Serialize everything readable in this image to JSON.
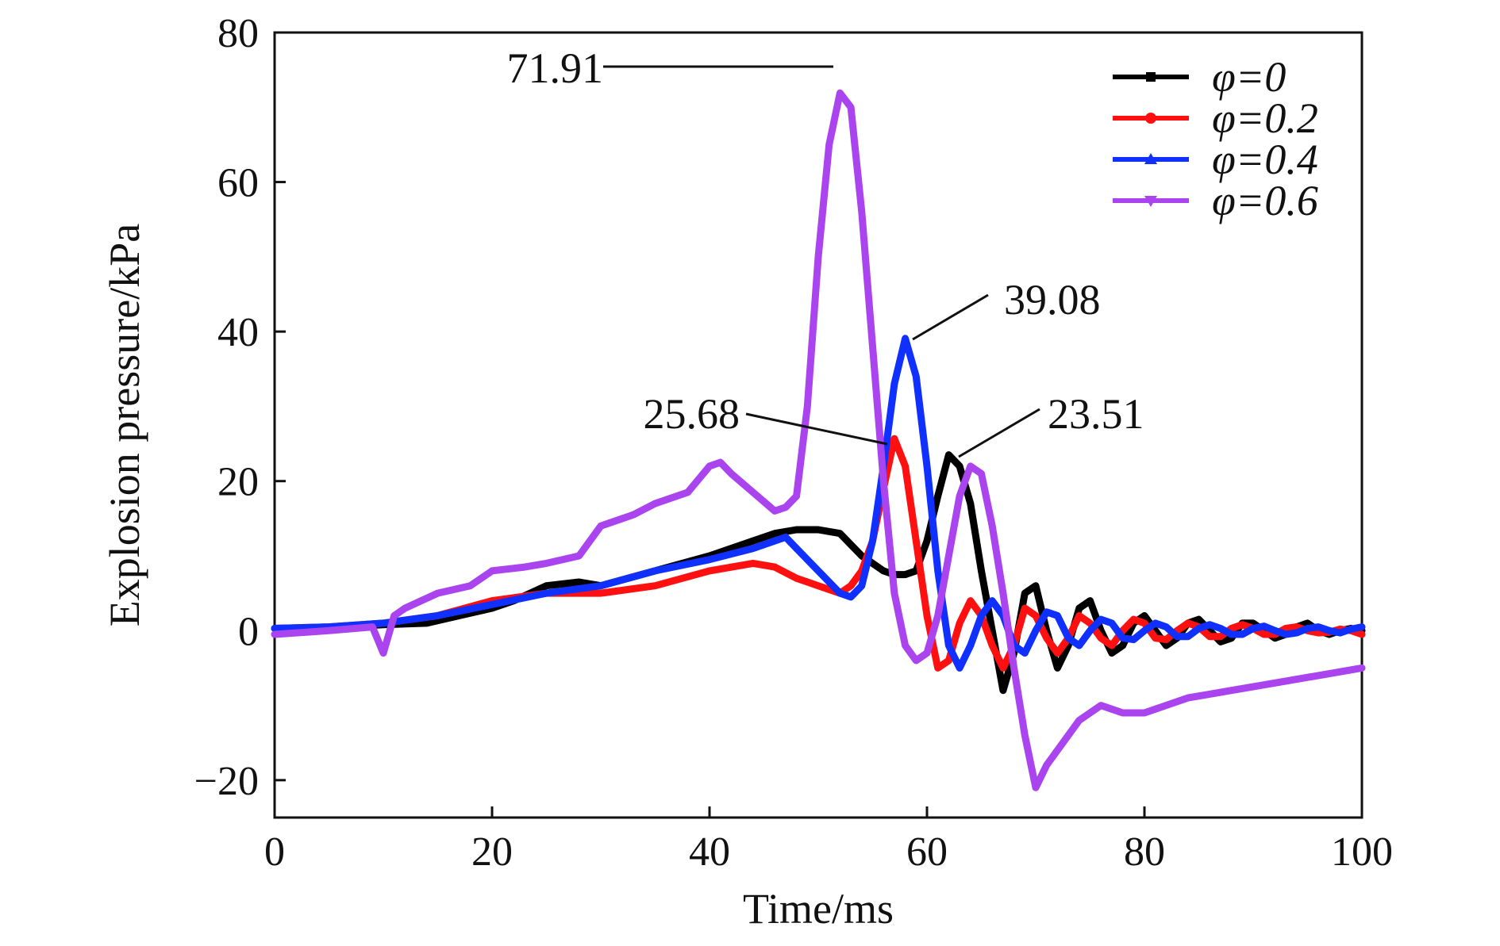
{
  "chart_data": {
    "type": "line",
    "title": "",
    "xlabel": "Time/ms",
    "ylabel": "Explosion pressure/kPa",
    "xlim": [
      0,
      100
    ],
    "ylim": [
      -25,
      80
    ],
    "xticks": [
      0,
      20,
      40,
      60,
      80,
      100
    ],
    "yticks": [
      -20,
      0,
      20,
      40,
      60,
      80
    ],
    "ytick_labels": [
      "−20",
      "0",
      "20",
      "40",
      "60",
      "80"
    ],
    "grid": false,
    "legend_position": "top-right",
    "series": [
      {
        "name": "φ=0",
        "color": "#000000",
        "marker": "square",
        "x": [
          0,
          5,
          10,
          14,
          17,
          20,
          22,
          25,
          28,
          30,
          35,
          40,
          44,
          46,
          48,
          50,
          52,
          54,
          56,
          57,
          58,
          59,
          60,
          61,
          62,
          63,
          64,
          65,
          66,
          67,
          68,
          69,
          70,
          71,
          72,
          73,
          74,
          75,
          76,
          77,
          78,
          79,
          80,
          81,
          82,
          83,
          84,
          85,
          86,
          87,
          88,
          89,
          90,
          91,
          92,
          93,
          94,
          95,
          96,
          97,
          98,
          99,
          100
        ],
        "y": [
          0.3,
          0.4,
          0.8,
          1,
          2,
          3,
          4,
          6,
          6.5,
          6,
          8,
          10,
          12,
          13,
          13.5,
          13.5,
          13,
          10,
          8,
          7.5,
          7.5,
          8,
          12,
          18,
          23.51,
          22,
          17,
          8,
          0,
          -8,
          -3,
          5,
          6,
          0,
          -5,
          -2,
          3,
          4,
          0,
          -3,
          -2,
          1,
          2,
          0,
          -2,
          -1,
          1,
          1.5,
          0,
          -1.5,
          -1,
          1,
          1,
          0,
          -1,
          -0.5,
          0.5,
          1,
          0,
          -0.5,
          0,
          0.3,
          0
        ]
      },
      {
        "name": "φ=0.2",
        "color": "#ff1010",
        "marker": "circle",
        "x": [
          0,
          5,
          10,
          15,
          20,
          25,
          30,
          35,
          40,
          44,
          46,
          48,
          50,
          52,
          53,
          54,
          55,
          56,
          57,
          58,
          59,
          60,
          61,
          62,
          63,
          64,
          65,
          66,
          67,
          68,
          69,
          70,
          71,
          72,
          73,
          74,
          75,
          76,
          77,
          78,
          79,
          80,
          81,
          82,
          83,
          84,
          85,
          86,
          87,
          88,
          89,
          90,
          91,
          92,
          93,
          94,
          95,
          96,
          97,
          98,
          99,
          100
        ],
        "y": [
          0.3,
          0.5,
          1,
          2,
          4,
          5,
          5,
          6,
          8,
          9,
          8.5,
          7,
          6,
          5,
          6,
          8,
          12,
          19,
          25.68,
          22,
          12,
          2,
          -5,
          -4,
          1,
          4,
          2,
          -2,
          -5,
          -2,
          3,
          2,
          -1,
          -3,
          -1,
          2,
          1,
          -1,
          -2,
          0,
          1.5,
          1,
          -1,
          -1.2,
          0,
          1,
          0.5,
          -0.8,
          -0.8,
          0.3,
          0.8,
          0.3,
          -0.5,
          -0.5,
          0.3,
          0.5,
          0,
          -0.3,
          -0.2,
          0.2,
          0,
          -0.5
        ]
      },
      {
        "name": "φ=0.4",
        "color": "#1030ff",
        "marker": "triangle",
        "x": [
          0,
          5,
          10,
          15,
          20,
          25,
          30,
          35,
          40,
          44,
          46,
          47,
          48,
          50,
          52,
          53,
          54,
          55,
          56,
          57,
          58,
          59,
          60,
          61,
          62,
          63,
          64,
          65,
          66,
          67,
          68,
          69,
          70,
          71,
          72,
          73,
          74,
          75,
          76,
          77,
          78,
          79,
          80,
          81,
          82,
          83,
          84,
          85,
          86,
          87,
          88,
          89,
          90,
          91,
          92,
          93,
          94,
          95,
          96,
          97,
          98,
          99,
          100
        ],
        "y": [
          0.3,
          0.5,
          1,
          2,
          3.5,
          5,
          6,
          8,
          9.5,
          11,
          12,
          12.5,
          11,
          8,
          5,
          4.5,
          6,
          12,
          22,
          33,
          39.08,
          34,
          22,
          8,
          -2,
          -5,
          -2,
          2,
          4,
          2,
          -2,
          -3,
          0,
          2.5,
          2,
          -1,
          -2,
          0,
          1.5,
          1,
          -1,
          -1.2,
          0,
          1,
          0.5,
          -0.8,
          -0.8,
          0.3,
          0.8,
          0.3,
          -0.5,
          -0.5,
          0.3,
          0.6,
          0,
          -0.5,
          -0.3,
          0.3,
          0.5,
          0,
          -0.3,
          0.2,
          0.5
        ]
      },
      {
        "name": "φ=0.6",
        "color": "#aa44ee",
        "marker": "inverted-triangle",
        "x": [
          0,
          5,
          9,
          10,
          11,
          12,
          15,
          18,
          20,
          23,
          25,
          28,
          30,
          33,
          35,
          38,
          40,
          41,
          42,
          44,
          46,
          47,
          48,
          49,
          50,
          51,
          52,
          53,
          54,
          55,
          56,
          57,
          58,
          59,
          60,
          61,
          62,
          63,
          64,
          65,
          66,
          67,
          68,
          69,
          70,
          71,
          72,
          74,
          76,
          78,
          80,
          84,
          88,
          92,
          96,
          100
        ],
        "y": [
          -0.5,
          0,
          0.5,
          -3,
          2,
          3,
          5,
          6,
          8,
          8.5,
          9,
          10,
          14,
          15.5,
          17,
          18.5,
          22,
          22.5,
          21,
          18.5,
          16,
          16.5,
          18,
          30,
          50,
          65,
          71.91,
          70,
          56,
          38,
          20,
          5,
          -2,
          -4,
          -3,
          2,
          10,
          18,
          22,
          21,
          14,
          5,
          -5,
          -14,
          -21,
          -18,
          -16,
          -12,
          -10,
          -11,
          -11,
          -9,
          -8,
          -7,
          -6,
          -5
        ]
      }
    ],
    "annotations": [
      {
        "text": "71.91",
        "series": "φ=0.6",
        "x": 52,
        "y": 71.91
      },
      {
        "text": "39.08",
        "series": "φ=0.4",
        "x": 58,
        "y": 39.08
      },
      {
        "text": "25.68",
        "series": "φ=0.2",
        "x": 57,
        "y": 25.68
      },
      {
        "text": "23.51",
        "series": "φ=0",
        "x": 62,
        "y": 23.51
      }
    ]
  }
}
